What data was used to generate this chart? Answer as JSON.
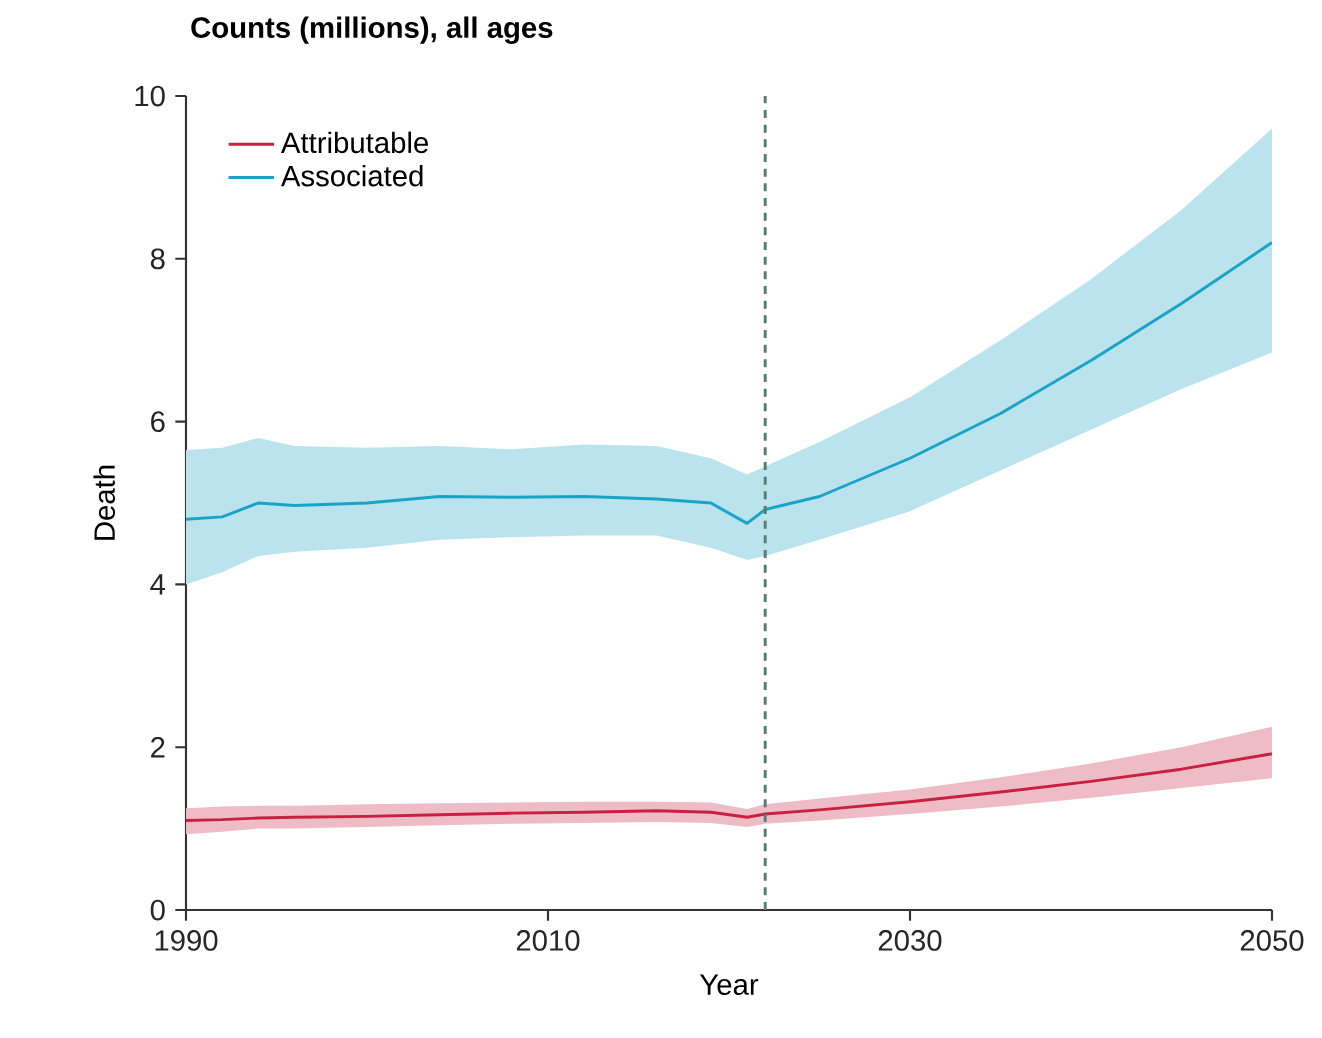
{
  "chart_data": {
    "type": "line",
    "title": "Counts (millions), all ages",
    "xlabel": "Year",
    "ylabel": "Death",
    "x": [
      1990,
      1992,
      1994,
      1996,
      2000,
      2004,
      2008,
      2012,
      2016,
      2019,
      2021,
      2022,
      2025,
      2030,
      2035,
      2040,
      2045,
      2050
    ],
    "series": [
      {
        "name": "Attributable",
        "color": "#c8203f",
        "values": [
          1.1,
          1.11,
          1.13,
          1.14,
          1.15,
          1.17,
          1.19,
          1.2,
          1.22,
          1.2,
          1.14,
          1.18,
          1.23,
          1.33,
          1.45,
          1.58,
          1.73,
          1.92
        ],
        "lower": [
          0.93,
          0.96,
          1.0,
          1.0,
          1.02,
          1.04,
          1.06,
          1.07,
          1.08,
          1.07,
          1.02,
          1.06,
          1.1,
          1.18,
          1.27,
          1.38,
          1.5,
          1.62
        ],
        "upper": [
          1.25,
          1.27,
          1.28,
          1.28,
          1.3,
          1.31,
          1.32,
          1.33,
          1.33,
          1.32,
          1.24,
          1.3,
          1.37,
          1.48,
          1.63,
          1.8,
          2.0,
          2.25
        ]
      },
      {
        "name": "Associated",
        "color": "#1ba3c6",
        "values": [
          4.8,
          4.83,
          5.0,
          4.97,
          5.0,
          5.08,
          5.07,
          5.08,
          5.05,
          5.0,
          4.75,
          4.92,
          5.08,
          5.55,
          6.1,
          6.75,
          7.45,
          8.2
        ],
        "lower": [
          4.0,
          4.15,
          4.35,
          4.4,
          4.45,
          4.55,
          4.58,
          4.6,
          4.6,
          4.45,
          4.3,
          4.35,
          4.55,
          4.9,
          5.4,
          5.9,
          6.4,
          6.85
        ],
        "upper": [
          5.65,
          5.68,
          5.8,
          5.7,
          5.68,
          5.7,
          5.66,
          5.72,
          5.7,
          5.55,
          5.35,
          5.45,
          5.75,
          6.3,
          7.0,
          7.75,
          8.6,
          9.6
        ]
      }
    ],
    "xlim": [
      1990,
      2050
    ],
    "xticks": [
      1990,
      2010,
      2030,
      2050
    ],
    "ylim": [
      0,
      10
    ],
    "yticks": [
      0,
      2,
      4,
      6,
      8,
      10
    ],
    "ref_lines": [
      {
        "axis": "x",
        "value": 2022,
        "color": "#5a7a78",
        "line_style": "dashed"
      }
    ],
    "legend": "top left",
    "grid": false
  }
}
